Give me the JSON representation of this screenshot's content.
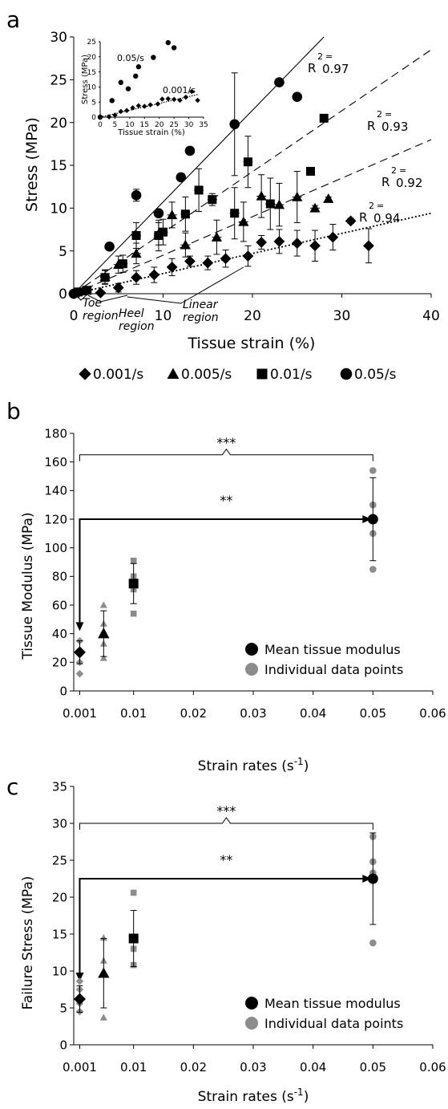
{
  "chart_data": [
    {
      "panel": "a",
      "type": "scatter",
      "xlabel": "Tissue strain (%)",
      "ylabel": "Stress (MPa)",
      "xlim": [
        0,
        40
      ],
      "ylim": [
        0,
        30
      ],
      "xticks": [
        0,
        10,
        20,
        30,
        40
      ],
      "yticks": [
        0,
        5,
        10,
        15,
        20,
        25,
        30
      ],
      "legend_position": "bottom",
      "series": [
        {
          "name": "0.001/s",
          "marker": "diamond",
          "points": [
            {
              "x": 0,
              "y": 0,
              "err": 0
            },
            {
              "x": 0.5,
              "y": 0.1,
              "err": 0
            },
            {
              "x": 3,
              "y": 0.1,
              "err": 0.2
            },
            {
              "x": 5,
              "y": 0.7,
              "err": 0.5
            },
            {
              "x": 7,
              "y": 1.9,
              "err": 0.8
            },
            {
              "x": 9,
              "y": 2.2,
              "err": 0.9
            },
            {
              "x": 11,
              "y": 3.1,
              "err": 1.0
            },
            {
              "x": 13,
              "y": 3.8,
              "err": 0.6
            },
            {
              "x": 15,
              "y": 3.6,
              "err": 0.8
            },
            {
              "x": 17,
              "y": 4.1,
              "err": 1.0
            },
            {
              "x": 19.5,
              "y": 4.4,
              "err": 1.2
            },
            {
              "x": 21,
              "y": 6.0,
              "err": 0.8
            },
            {
              "x": 23,
              "y": 6.1,
              "err": 1.4
            },
            {
              "x": 25,
              "y": 5.9,
              "err": 1.5
            },
            {
              "x": 27,
              "y": 5.6,
              "err": 1.8
            },
            {
              "x": 29,
              "y": 6.6,
              "err": 1.5
            },
            {
              "x": 31,
              "y": 8.5,
              "err": 0.3
            },
            {
              "x": 33,
              "y": 5.6,
              "err": 2.0
            }
          ]
        },
        {
          "name": "0.005/s",
          "marker": "triangle",
          "points": [
            {
              "x": 1,
              "y": 0.3,
              "err": 0.2
            },
            {
              "x": 3.5,
              "y": 2.0,
              "err": 0.8
            },
            {
              "x": 5,
              "y": 3.4,
              "err": 1.0
            },
            {
              "x": 7,
              "y": 4.7,
              "err": 1.2
            },
            {
              "x": 9.5,
              "y": 7.0,
              "err": 1.3
            },
            {
              "x": 11,
              "y": 9.2,
              "err": 1.5
            },
            {
              "x": 12.5,
              "y": 5.7,
              "err": 1.4
            },
            {
              "x": 16,
              "y": 6.6,
              "err": 2.0
            },
            {
              "x": 19,
              "y": 8.4,
              "err": 2.3
            },
            {
              "x": 21,
              "y": 11.4,
              "err": 2.5
            },
            {
              "x": 23,
              "y": 10.4,
              "err": 2.5
            },
            {
              "x": 25,
              "y": 11.3,
              "err": 3.0
            },
            {
              "x": 27,
              "y": 10.0,
              "err": 0.3
            },
            {
              "x": 28.5,
              "y": 11.1,
              "err": 0.2
            }
          ]
        },
        {
          "name": "0.01/s",
          "marker": "square",
          "points": [
            {
              "x": 0.5,
              "y": 0.2,
              "err": 0.3
            },
            {
              "x": 1.5,
              "y": 0.4,
              "err": 0.3
            },
            {
              "x": 3.5,
              "y": 1.9,
              "err": 0.8
            },
            {
              "x": 5.5,
              "y": 3.5,
              "err": 1.0
            },
            {
              "x": 7,
              "y": 6.8,
              "err": 1.5
            },
            {
              "x": 9.5,
              "y": 6.8,
              "err": 1.8
            },
            {
              "x": 10,
              "y": 7.2,
              "err": 1.5
            },
            {
              "x": 12.5,
              "y": 9.3,
              "err": 2.0
            },
            {
              "x": 14,
              "y": 12.1,
              "err": 2.5
            },
            {
              "x": 15.5,
              "y": 11.0,
              "err": 0.7
            },
            {
              "x": 18,
              "y": 9.4,
              "err": 3.0
            },
            {
              "x": 19.5,
              "y": 15.4,
              "err": 3.0
            },
            {
              "x": 22,
              "y": 10.5,
              "err": 3.0
            },
            {
              "x": 26.5,
              "y": 14.3,
              "err": 0.2
            },
            {
              "x": 28,
              "y": 20.5,
              "err": 0.2
            }
          ]
        },
        {
          "name": "0.05/s",
          "marker": "circle",
          "points": [
            {
              "x": 0,
              "y": 0,
              "err": 0
            },
            {
              "x": 4,
              "y": 5.5,
              "err": 0
            },
            {
              "x": 7,
              "y": 11.5,
              "err": 0.7
            },
            {
              "x": 9.5,
              "y": 9.4,
              "err": 0
            },
            {
              "x": 12,
              "y": 13.6,
              "err": 0
            },
            {
              "x": 13,
              "y": 16.7,
              "err": 0
            },
            {
              "x": 18,
              "y": 19.8,
              "err": 6.0
            },
            {
              "x": 23,
              "y": 24.7,
              "err": 0
            },
            {
              "x": 25,
              "y": 23.0,
              "err": 0
            }
          ]
        }
      ],
      "fits": [
        {
          "style": "solid",
          "x": [
            0,
            28
          ],
          "y": [
            0,
            30
          ],
          "r2": "0.97"
        },
        {
          "style": "dashed",
          "x": [
            0,
            40
          ],
          "y": [
            0,
            28.5
          ],
          "r2": "0.93"
        },
        {
          "style": "dashed",
          "x": [
            0,
            40
          ],
          "y": [
            0,
            18
          ],
          "r2": "0.92"
        },
        {
          "style": "dotted",
          "x": [
            0,
            40
          ],
          "y": [
            0,
            9.4
          ],
          "r2": "0.94"
        }
      ],
      "r2_prefix": "R",
      "r2_superscript": "2",
      "r2_equals": "=",
      "region_labels": [
        {
          "lines": [
            "Toe",
            "region"
          ]
        },
        {
          "lines": [
            "Heel",
            "region"
          ]
        },
        {
          "lines": [
            "Linear",
            "region"
          ]
        }
      ],
      "inset": {
        "xlabel": "Tissue strain (%)",
        "ylabel": "Stress (MPa)",
        "xlim": [
          0,
          35
        ],
        "ylim": [
          0,
          25
        ],
        "xticks": [
          0,
          5,
          10,
          15,
          20,
          25,
          30,
          35
        ],
        "yticks": [
          0,
          5,
          10,
          15,
          20,
          25
        ],
        "annotations": [
          "0.05/s",
          "0.001/s"
        ],
        "series_circle": [
          {
            "x": 0,
            "y": 0
          },
          {
            "x": 4,
            "y": 5.5
          },
          {
            "x": 7,
            "y": 11.5
          },
          {
            "x": 9.5,
            "y": 9.4
          },
          {
            "x": 12,
            "y": 13.6
          },
          {
            "x": 13,
            "y": 16.7
          },
          {
            "x": 18,
            "y": 19.8
          },
          {
            "x": 23,
            "y": 24.7
          },
          {
            "x": 25,
            "y": 23.0
          }
        ],
        "series_diamond": [
          {
            "x": 0,
            "y": 0
          },
          {
            "x": 3,
            "y": 0.1
          },
          {
            "x": 5,
            "y": 0.7
          },
          {
            "x": 7,
            "y": 1.9
          },
          {
            "x": 9,
            "y": 2.2
          },
          {
            "x": 11,
            "y": 3.1
          },
          {
            "x": 13,
            "y": 3.8
          },
          {
            "x": 15,
            "y": 3.6
          },
          {
            "x": 17,
            "y": 4.1
          },
          {
            "x": 19.5,
            "y": 4.4
          },
          {
            "x": 21,
            "y": 6.0
          },
          {
            "x": 23,
            "y": 6.1
          },
          {
            "x": 25,
            "y": 5.9
          },
          {
            "x": 27,
            "y": 5.6
          },
          {
            "x": 29,
            "y": 6.6
          },
          {
            "x": 31,
            "y": 8.5
          },
          {
            "x": 33,
            "y": 5.6
          }
        ],
        "fit_dotted": {
          "x": [
            0,
            33
          ],
          "y": [
            0,
            7.5
          ]
        }
      }
    },
    {
      "panel": "b",
      "type": "scatter",
      "xlabel": "Strain rates (s",
      "xlabel_superscript": "-1",
      "xlabel_suffix": ")",
      "ylabel": "Tissue Modulus (MPa)",
      "xlim": [
        0,
        0.06
      ],
      "ylim": [
        0,
        180
      ],
      "xticks": [
        0.001,
        0.01,
        0.02,
        0.03,
        0.04,
        0.05,
        0.06
      ],
      "xtick_labels": [
        "0.001",
        "0.01",
        "0.02",
        "0.03",
        "0.04",
        "0.05",
        "0.06"
      ],
      "yticks": [
        0,
        20,
        40,
        60,
        80,
        100,
        120,
        140,
        160,
        180
      ],
      "legend_position": "bottom-right",
      "legend": [
        "Mean tissue modulus",
        "Individual data points"
      ],
      "mean_points": [
        {
          "x": 0.001,
          "y": 27,
          "err": 8,
          "marker": "diamond"
        },
        {
          "x": 0.005,
          "y": 40,
          "err": 16,
          "marker": "triangle"
        },
        {
          "x": 0.01,
          "y": 75,
          "err": 14,
          "marker": "square"
        },
        {
          "x": 0.05,
          "y": 120,
          "err": 29,
          "marker": "circle"
        }
      ],
      "individual_points": [
        {
          "x": 0.001,
          "y": 35,
          "marker": "diamond"
        },
        {
          "x": 0.001,
          "y": 28,
          "marker": "diamond"
        },
        {
          "x": 0.001,
          "y": 20,
          "marker": "diamond"
        },
        {
          "x": 0.001,
          "y": 12,
          "marker": "diamond"
        },
        {
          "x": 0.005,
          "y": 60,
          "marker": "triangle"
        },
        {
          "x": 0.005,
          "y": 47,
          "marker": "triangle"
        },
        {
          "x": 0.005,
          "y": 42,
          "marker": "triangle"
        },
        {
          "x": 0.005,
          "y": 33,
          "marker": "triangle"
        },
        {
          "x": 0.005,
          "y": 23,
          "marker": "triangle"
        },
        {
          "x": 0.01,
          "y": 91,
          "marker": "square"
        },
        {
          "x": 0.01,
          "y": 80,
          "marker": "square"
        },
        {
          "x": 0.01,
          "y": 76,
          "marker": "square"
        },
        {
          "x": 0.01,
          "y": 71,
          "marker": "square"
        },
        {
          "x": 0.01,
          "y": 54,
          "marker": "square"
        },
        {
          "x": 0.05,
          "y": 154,
          "marker": "circle"
        },
        {
          "x": 0.05,
          "y": 130,
          "marker": "circle"
        },
        {
          "x": 0.05,
          "y": 110,
          "marker": "circle"
        },
        {
          "x": 0.05,
          "y": 85,
          "marker": "circle"
        }
      ],
      "brace": {
        "x1": 0.001,
        "x2": 0.05,
        "y": 165,
        "label": "***"
      },
      "arrow": {
        "x1": 0.001,
        "x2": 0.05,
        "y": 120,
        "label": "**",
        "down_to": 43
      }
    },
    {
      "panel": "c",
      "type": "scatter",
      "xlabel": "Strain rates (s",
      "xlabel_superscript": "-1",
      "xlabel_suffix": ")",
      "ylabel": "Failure Stress (MPa)",
      "xlim": [
        0,
        0.06
      ],
      "ylim": [
        0,
        35
      ],
      "xticks": [
        0.001,
        0.01,
        0.02,
        0.03,
        0.04,
        0.05,
        0.06
      ],
      "xtick_labels": [
        "0.001",
        "0.01",
        "0.02",
        "0.03",
        "0.04",
        "0.05",
        "0.06"
      ],
      "yticks": [
        0,
        5,
        10,
        15,
        20,
        25,
        30,
        35
      ],
      "legend_position": "bottom-right",
      "legend": [
        "Mean tissue modulus",
        "Individual data points"
      ],
      "mean_points": [
        {
          "x": 0.001,
          "y": 6.2,
          "err": 1.8,
          "marker": "diamond"
        },
        {
          "x": 0.005,
          "y": 9.7,
          "err": 4.7,
          "marker": "triangle"
        },
        {
          "x": 0.01,
          "y": 14.4,
          "err": 3.8,
          "marker": "square"
        },
        {
          "x": 0.05,
          "y": 22.5,
          "err": 6.2,
          "marker": "circle"
        }
      ],
      "individual_points": [
        {
          "x": 0.001,
          "y": 8.6,
          "marker": "diamond"
        },
        {
          "x": 0.001,
          "y": 7.5,
          "marker": "diamond"
        },
        {
          "x": 0.001,
          "y": 5.6,
          "marker": "diamond"
        },
        {
          "x": 0.001,
          "y": 4.5,
          "marker": "diamond"
        },
        {
          "x": 0.005,
          "y": 14.5,
          "marker": "triangle"
        },
        {
          "x": 0.005,
          "y": 11.4,
          "marker": "triangle"
        },
        {
          "x": 0.005,
          "y": 9.6,
          "marker": "triangle"
        },
        {
          "x": 0.005,
          "y": 3.7,
          "marker": "triangle"
        },
        {
          "x": 0.01,
          "y": 20.6,
          "marker": "square"
        },
        {
          "x": 0.01,
          "y": 14.4,
          "marker": "square"
        },
        {
          "x": 0.01,
          "y": 13.0,
          "marker": "square"
        },
        {
          "x": 0.01,
          "y": 10.8,
          "marker": "square"
        },
        {
          "x": 0.05,
          "y": 28.2,
          "marker": "circle"
        },
        {
          "x": 0.05,
          "y": 24.8,
          "marker": "circle"
        },
        {
          "x": 0.05,
          "y": 23.3,
          "marker": "circle"
        },
        {
          "x": 0.05,
          "y": 13.8,
          "marker": "circle"
        }
      ],
      "brace": {
        "x1": 0.001,
        "x2": 0.05,
        "y": 30.0,
        "label": "***"
      },
      "arrow": {
        "x1": 0.001,
        "x2": 0.05,
        "y": 22.5,
        "label": "**",
        "down_to": 8.8
      }
    }
  ],
  "colors": {
    "mean": "#000000",
    "individual": "#8c8c8c"
  }
}
